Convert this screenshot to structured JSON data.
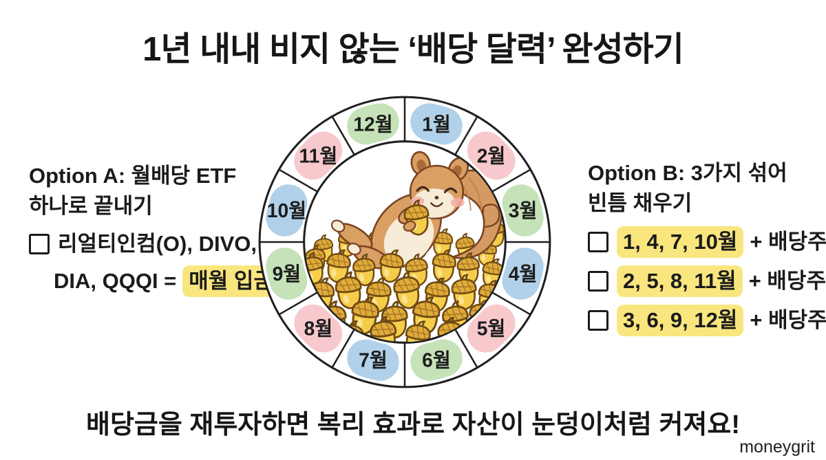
{
  "title": "1년 내내 비지 않는 ‘배당 달력’ 완성하기",
  "option_a": {
    "heading_line1": "Option A: 월배당 ETF",
    "heading_line2": "하나로 끝내기",
    "item_line1": "리얼티인컴(O), DIVO,",
    "item_line2_prefix": "DIA, QQQI =",
    "item_line2_highlight": "매월 입금"
  },
  "option_b": {
    "heading_line1": "Option B: 3가지 섞어",
    "heading_line2": "빈틈 채우기",
    "items": [
      {
        "highlight": "1, 4, 7, 10월",
        "suffix": "+ 배당주"
      },
      {
        "highlight": "2, 5, 8, 11월",
        "suffix": "+ 배당주"
      },
      {
        "highlight": "3, 6, 9, 12월",
        "suffix": "+ 배당주"
      }
    ]
  },
  "wheel": {
    "months": [
      {
        "label": "1월",
        "color": "blue"
      },
      {
        "label": "2월",
        "color": "pink"
      },
      {
        "label": "3월",
        "color": "green"
      },
      {
        "label": "4월",
        "color": "blue"
      },
      {
        "label": "5월",
        "color": "pink"
      },
      {
        "label": "6월",
        "color": "green"
      },
      {
        "label": "7월",
        "color": "blue"
      },
      {
        "label": "8월",
        "color": "pink"
      },
      {
        "label": "9월",
        "color": "green"
      },
      {
        "label": "10월",
        "color": "blue"
      },
      {
        "label": "11월",
        "color": "pink"
      },
      {
        "label": "12월",
        "color": "green"
      }
    ],
    "palette": {
      "blue": "#b0d1e9",
      "pink": "#f7c9cc",
      "green": "#c6e2b8"
    },
    "center_illustration": "happy squirrel reclining on a pile of golden acorns"
  },
  "tagline": "배당금을 재투자하면 복리 효과로 자산이 눈덩이처럼 커져요!",
  "watermark": "moneygrit",
  "colors": {
    "highlight": "#f9e67e",
    "text": "#1b1b1b",
    "acorn_body": "#f6cd4b",
    "acorn_cap": "#e0ab3a",
    "acorn_outline": "#6f4a12",
    "squirrel_body": "#d99f63",
    "squirrel_cream": "#f7ecd7",
    "squirrel_outline": "#7a4423",
    "blush": "#f4afa6"
  }
}
